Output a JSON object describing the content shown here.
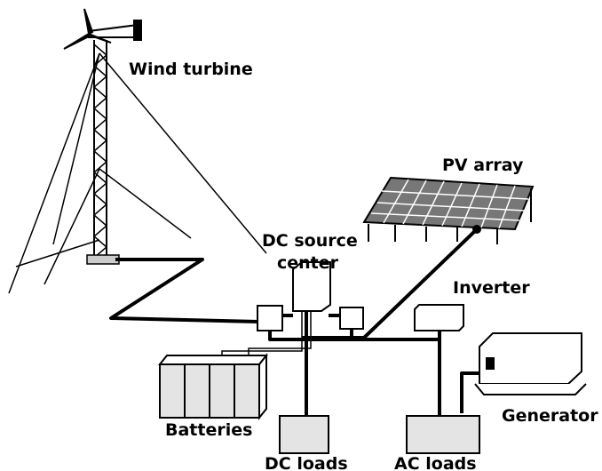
{
  "nodes": [
    {
      "label": "Wind turbine"
    },
    {
      "label": "PV array"
    },
    {
      "label": [
        "DC source",
        "center"
      ]
    },
    {
      "label": "Inverter"
    },
    {
      "label": "Batteries"
    },
    {
      "label": "Generator"
    },
    {
      "label": "DC loads"
    },
    {
      "label": "AC loads"
    }
  ]
}
